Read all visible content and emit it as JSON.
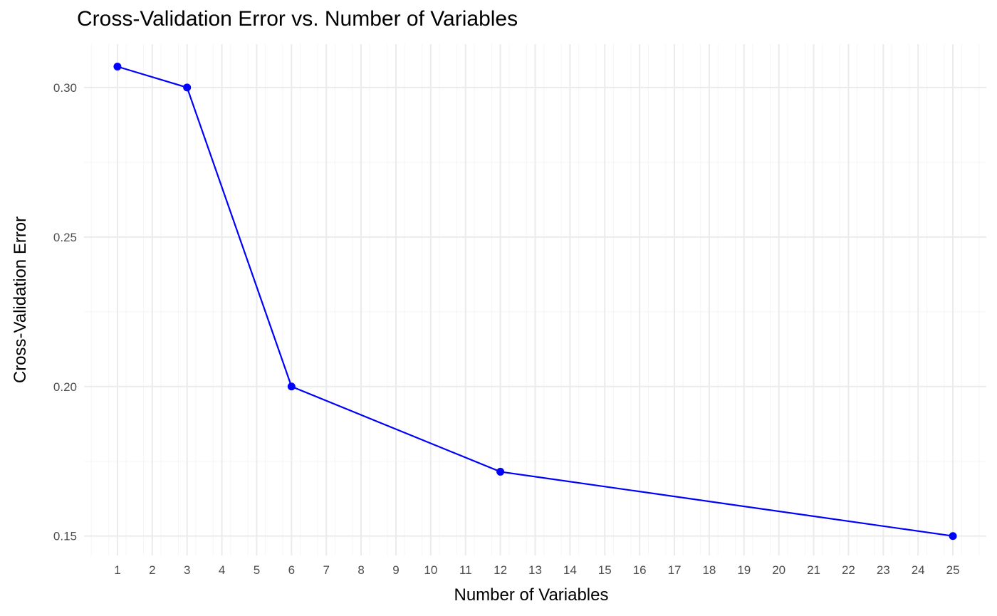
{
  "chart_data": {
    "type": "line",
    "title": "Cross-Validation Error vs. Number of Variables",
    "xlabel": "Number of Variables",
    "ylabel": "Cross-Validation Error",
    "x_ticks": [
      1,
      2,
      3,
      4,
      5,
      6,
      7,
      8,
      9,
      10,
      11,
      12,
      13,
      14,
      15,
      16,
      17,
      18,
      19,
      20,
      21,
      22,
      23,
      24,
      25
    ],
    "y_ticks": [
      "0.15",
      "0.20",
      "0.25",
      "0.30"
    ],
    "xlim": [
      0.04,
      25.96
    ],
    "ylim": [
      0.1435,
      0.3145
    ],
    "grid": true,
    "series": [
      {
        "x": [
          1,
          3,
          6,
          12,
          25
        ],
        "y": [
          0.307,
          0.3,
          0.2,
          0.1715,
          0.15
        ],
        "color": "#0000ff"
      }
    ]
  },
  "colors": {
    "line": "#0000ff",
    "grid_major": "#ebebeb",
    "grid_minor": "#f5f5f5",
    "tick_text": "#4d4d4d"
  }
}
